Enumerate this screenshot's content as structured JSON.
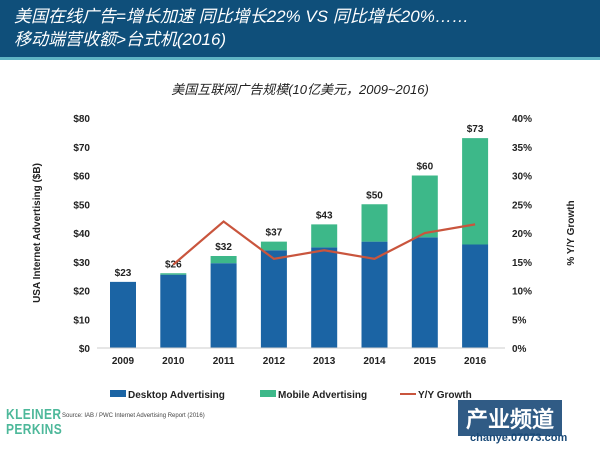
{
  "header": {
    "line1": "美国在线广告=增长加速 同比增长22% VS 同比增长20%……",
    "line2": "移动端营收额>台式机(2016)"
  },
  "chart_data": {
    "type": "bar",
    "title": "美国互联网广告规模(10亿美元，2009~2016)",
    "categories": [
      "2009",
      "2010",
      "2011",
      "2012",
      "2013",
      "2014",
      "2015",
      "2016"
    ],
    "series": [
      {
        "name": "Desktop Advertising",
        "kind": "stacked-bar",
        "color": "#1b64a4",
        "values": [
          23,
          25.5,
          29.5,
          34,
          35,
          37,
          38.5,
          36
        ]
      },
      {
        "name": "Mobile Advertising",
        "kind": "stacked-bar",
        "color": "#3db889",
        "values": [
          0,
          0.5,
          2.5,
          3,
          8,
          13,
          21.5,
          37
        ]
      },
      {
        "name": "Y/Y Growth",
        "kind": "line",
        "axis": "right",
        "color": "#c9553d",
        "values": [
          null,
          14.5,
          22,
          15.5,
          17,
          15.5,
          20,
          21.5
        ]
      }
    ],
    "totals_labels": [
      "$23",
      "$26",
      "$32",
      "$37",
      "$43",
      "$50",
      "$60",
      "$73"
    ],
    "ylabel": "USA Internet Advertising ($B)",
    "ylim": [
      0,
      80
    ],
    "yticks": [
      "$0",
      "$10",
      "$20",
      "$30",
      "$40",
      "$50",
      "$60",
      "$70",
      "$80"
    ],
    "y2label": "% Y/Y Growth",
    "y2lim": [
      0,
      40
    ],
    "y2ticks": [
      "0%",
      "5%",
      "10%",
      "15%",
      "20%",
      "25%",
      "30%",
      "35%",
      "40%"
    ],
    "legend_position": "bottom",
    "grid": false
  },
  "source": "Source: IAB / PWC Internet Advertising Report (2016)",
  "logo": {
    "line1": "KLEINER",
    "line2": "PERKINS"
  },
  "watermark": {
    "main": "产业频道",
    "sub": "chanye.07073.com"
  }
}
